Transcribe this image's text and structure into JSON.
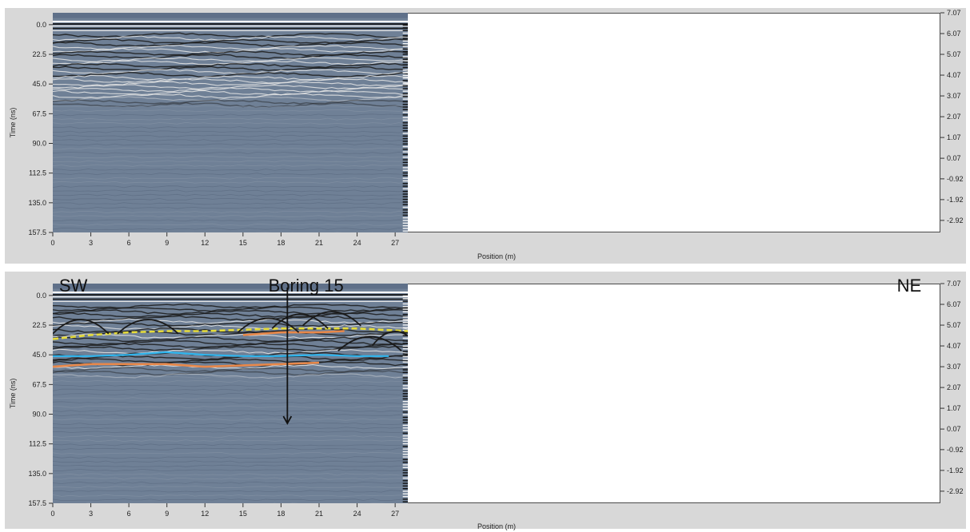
{
  "colors": {
    "panel_bg": "#d8d8d8",
    "radargram_base": "#6f8096",
    "reflector_dark": "#111111",
    "hyperbola": "#1a1a1a",
    "yellow_dashed": "#e6dc3a",
    "orange": "#e8884a",
    "blue": "#2fb6ef"
  },
  "chart_data": [
    {
      "type": "radargram",
      "title": "",
      "xlabel": "Position (m)",
      "ylabel": "Time (ns)",
      "y2label": "",
      "xlim": [
        0,
        70
      ],
      "ylim": [
        157.5,
        -9
      ],
      "y2lim": [
        -3.5,
        7.07
      ],
      "x_ticks": [
        "0",
        "3",
        "6",
        "9",
        "12",
        "15",
        "18",
        "21",
        "24",
        "27"
      ],
      "y_ticks": [
        "0.0",
        "22.5",
        "45.0",
        "67.5",
        "90.0",
        "112.5",
        "135.0",
        "157.5"
      ],
      "y2_ticks": [
        "7.07",
        "6.07",
        "5.07",
        "4.07",
        "3.07",
        "2.07",
        "1.07",
        "0.07",
        "-0.92",
        "-1.92",
        "-2.92"
      ],
      "data_extent_x": [
        0,
        28
      ],
      "annotations": []
    },
    {
      "type": "radargram",
      "title": "",
      "xlabel": "Position (m)",
      "ylabel": "Time (ns)",
      "y2label": "",
      "xlim": [
        0,
        70
      ],
      "ylim": [
        157.5,
        -9
      ],
      "y2lim": [
        -3.5,
        7.07
      ],
      "x_ticks": [
        "0",
        "3",
        "6",
        "9",
        "12",
        "15",
        "18",
        "21",
        "24",
        "27"
      ],
      "y_ticks": [
        "0.0",
        "22.5",
        "45.0",
        "67.5",
        "90.0",
        "112.5",
        "135.0",
        "157.5"
      ],
      "y2_ticks": [
        "7.07",
        "6.07",
        "5.07",
        "4.07",
        "3.07",
        "2.07",
        "1.07",
        "0.07",
        "-0.92",
        "-1.92",
        "-2.92"
      ],
      "data_extent_x": [
        0,
        28
      ],
      "annotations": [
        {
          "text": "SW",
          "x": 0.5,
          "y": -3
        },
        {
          "text": "Boring 15",
          "x": 17,
          "y": -3
        },
        {
          "text": "NE",
          "x": 68.5,
          "y": -3
        }
      ],
      "boring_arrow": {
        "x": 18.5,
        "y_start": -6,
        "y_end": 97
      },
      "interpreted_layers": [
        {
          "name": "",
          "color": "yellow_dashed",
          "style": "dashed",
          "x": [
            0,
            3,
            6,
            9,
            12,
            15,
            18,
            21,
            24,
            28
          ],
          "y": [
            33,
            30,
            28,
            27,
            27,
            26,
            25,
            25,
            25,
            27
          ]
        },
        {
          "name": "",
          "color": "orange",
          "x": [
            0,
            3,
            6,
            9,
            12,
            15,
            18,
            21
          ],
          "y": [
            54,
            52,
            52,
            52,
            54,
            53,
            52,
            51
          ]
        },
        {
          "name": "",
          "color": "blue",
          "x": [
            0,
            3,
            6,
            9,
            12,
            15,
            18,
            21,
            24,
            26.5
          ],
          "y": [
            46,
            46,
            45,
            43,
            45,
            46,
            46,
            45,
            46,
            46
          ]
        },
        {
          "name": "",
          "color": "orange",
          "x": [
            15,
            18,
            21,
            23
          ],
          "y": [
            30,
            28,
            28,
            27
          ]
        }
      ],
      "hyperbolas": [
        {
          "x": 2.2,
          "apex": 13,
          "width": 2.2
        },
        {
          "x": 7.5,
          "apex": 13,
          "width": 2.4
        },
        {
          "x": 17.0,
          "apex": 12,
          "width": 2.4
        },
        {
          "x": 19.5,
          "apex": 9,
          "width": 2.2
        },
        {
          "x": 22.0,
          "apex": 7,
          "width": 2.3
        },
        {
          "x": 25.0,
          "apex": 26,
          "width": 2.5
        },
        {
          "x": 27.0,
          "apex": 22,
          "width": 1.8
        }
      ]
    }
  ]
}
